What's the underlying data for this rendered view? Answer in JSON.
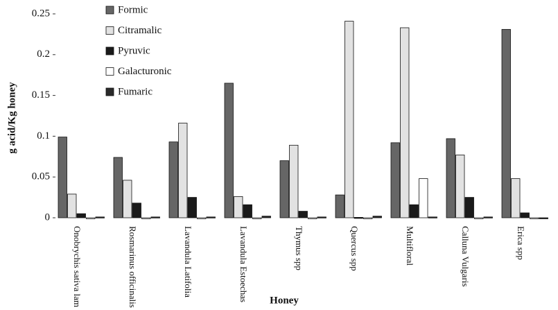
{
  "chart_data": {
    "type": "bar",
    "y_label": "g acid/Kg honey",
    "x_label": "Honey",
    "categories": [
      "Onobrychis sativa lam",
      "Rosmarinus officinalis",
      "Lavandula Latifolia",
      "Lavandula Estoechas",
      "Thymus spp",
      "Quercus spp",
      "Multifloral",
      "Calluna Vulgaris",
      "Erica spp"
    ],
    "series": [
      {
        "name": "Formic",
        "color": "#666666",
        "values": [
          0.099,
          0.074,
          0.093,
          0.165,
          0.07,
          0.028,
          0.092,
          0.097,
          0.231
        ]
      },
      {
        "name": "Citramalic",
        "color": "#e2e2e2",
        "values": [
          0.029,
          0.046,
          0.116,
          0.026,
          0.089,
          0.241,
          0.233,
          0.077,
          0.048
        ]
      },
      {
        "name": "Pyruvic",
        "color": "#1a1a1a",
        "values": [
          0.005,
          0.018,
          0.025,
          0.016,
          0.008,
          0.0005,
          0.016,
          0.025,
          0.006
        ]
      },
      {
        "name": "Galacturonic",
        "color": "#ffffff",
        "values": [
          0,
          0,
          0,
          0,
          0,
          0,
          0.048,
          0,
          0
        ]
      },
      {
        "name": "Fumaric",
        "color": "#2a2a2a",
        "values": [
          0.001,
          0.001,
          0.001,
          0.002,
          0.001,
          0.002,
          0.001,
          0.001,
          0
        ]
      }
    ],
    "ylim": [
      0,
      0.25
    ],
    "yticks": [
      0,
      0.05,
      0.1,
      0.15,
      0.2,
      0.25
    ]
  }
}
